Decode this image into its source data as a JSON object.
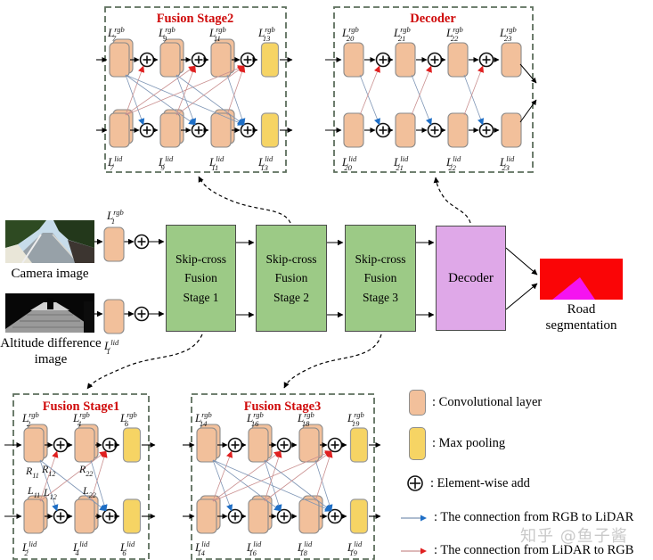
{
  "watermark": "知乎 @鱼子酱",
  "colors": {
    "conv": "#f2c09b",
    "conv_border": "#8a8a8a",
    "pool": "#f6d464",
    "pool_border": "#9a9a9a",
    "stage_green": "#9cca86",
    "decoder_purple": "#dfa8e8",
    "panel_dash_border": "#5c6e5c",
    "title_red": "#cf0a0a",
    "rgb_to_lidar": "#1f6fc6",
    "rgb_to_lidar_line": "#7e95b5",
    "lidar_to_rgb": "#e02020",
    "lidar_to_rgb_line": "#c98f8f",
    "road_bg": "#fa0506",
    "road_fg": "#f513f0"
  },
  "main": {
    "camera_label": "Camera image",
    "altitude_label": [
      "Altitude difference",
      "image"
    ],
    "input_layers": [
      {
        "base": "L",
        "sub": "1",
        "sup": "rgb"
      },
      {
        "base": "L",
        "sub": "1",
        "sup": "lid"
      }
    ],
    "stages": [
      [
        "Skip-cross",
        "Fusion",
        "Stage 1"
      ],
      [
        "Skip-cross",
        "Fusion",
        "Stage 2"
      ],
      [
        "Skip-cross",
        "Fusion",
        "Stage 3"
      ]
    ],
    "decoder": "Decoder",
    "road_label": "Road segmentation"
  },
  "panels": [
    {
      "id": "fusion-stage2",
      "title": "Fusion Stage2",
      "subs": [
        "7",
        "9",
        "11",
        "13"
      ],
      "types": [
        "conv",
        "conv",
        "conv",
        "pool"
      ],
      "sups": [
        "rgb",
        "lid"
      ],
      "cross": "full",
      "stacked": true
    },
    {
      "id": "decoder-panel",
      "title": "Decoder",
      "subs": [
        "20",
        "21",
        "22",
        "23"
      ],
      "types": [
        "conv",
        "conv",
        "conv",
        "conv"
      ],
      "sups": [
        "rgb",
        "lid"
      ],
      "cross": "parallel",
      "stacked": false,
      "output": "cross"
    },
    {
      "id": "fusion-stage1",
      "title": "Fusion Stage1",
      "subs": [
        "2",
        "4",
        "6"
      ],
      "types": [
        "conv",
        "conv",
        "pool"
      ],
      "sups": [
        "rgb",
        "lid"
      ],
      "cross": "full",
      "stacked": true,
      "edge_labels": {
        "top": [
          {
            "base": "R",
            "sub": "11"
          },
          {
            "base": "R",
            "sub": "12"
          },
          {
            "base": "R",
            "sub": "22"
          }
        ],
        "bottom": [
          {
            "base": "L",
            "sub": "11"
          },
          {
            "base": "L",
            "sub": "12"
          },
          {
            "base": "L",
            "sub": "22"
          }
        ]
      }
    },
    {
      "id": "fusion-stage3",
      "title": "Fusion Stage3",
      "subs": [
        "14",
        "16",
        "18",
        "19"
      ],
      "types": [
        "conv",
        "conv",
        "conv",
        "pool"
      ],
      "sups": [
        "rgb",
        "lid"
      ],
      "cross": "full",
      "stacked": true
    }
  ],
  "legend": {
    "items": [
      {
        "icon": "conv-swatch",
        "label": ": Convolutional layer"
      },
      {
        "icon": "pool-swatch",
        "label": ": Max pooling"
      },
      {
        "icon": "add-symbol",
        "label": ": Element-wise add"
      },
      {
        "icon": "rgb-to-lidar-arrow",
        "label": ": The connection from RGB to LiDAR"
      },
      {
        "icon": "lidar-to-rgb-arrow",
        "label": ": The connection from LiDAR to RGB"
      }
    ]
  }
}
